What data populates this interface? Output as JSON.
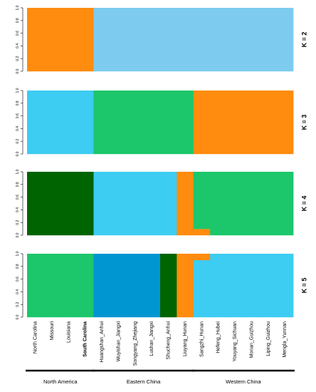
{
  "chart_data": {
    "type": "bar",
    "stacked": true,
    "categories": [
      "North Carolina",
      "Missouri",
      "Louisiana",
      "South Carolina",
      "Huangshan_Anhui",
      "Wuyishan_Jiangxi",
      "Songyang_Zhejiang",
      "Lushan_Jiangxi",
      "Shucheng_Anhui",
      "Liuyang_Hunan",
      "Sangzhi_Hunan",
      "Hefeng_Hubei",
      "Youyang_Sichuan",
      "Monan_Guizhou",
      "Liping_Guizhou",
      "Mengla_Yunnan"
    ],
    "bold_category": "South Carolina",
    "groups": [
      {
        "label": "North America",
        "start": 0,
        "end": 3
      },
      {
        "label": "Eastern China",
        "start": 4,
        "end": 9
      },
      {
        "label": "Western China",
        "start": 10,
        "end": 15
      }
    ],
    "ylim": [
      0,
      1
    ],
    "yticks": [
      "0.0",
      "0.2",
      "0.4",
      "0.6",
      "0.8",
      "1.0"
    ],
    "panels": [
      {
        "label": "K = 2",
        "segments": [
          {
            "from": 0,
            "to": 4,
            "layers": [
              {
                "color": "#FF8C0F",
                "value": 1
              }
            ]
          },
          {
            "from": 4,
            "to": 16,
            "layers": [
              {
                "color": "#7DCCF0",
                "value": 1
              }
            ]
          }
        ]
      },
      {
        "label": "K = 3",
        "segments": [
          {
            "from": 0,
            "to": 4,
            "layers": [
              {
                "color": "#3DCCF2",
                "value": 1
              }
            ]
          },
          {
            "from": 4,
            "to": 10,
            "layers": [
              {
                "color": "#1CC66B",
                "value": 1
              }
            ]
          },
          {
            "from": 10,
            "to": 16,
            "layers": [
              {
                "color": "#FF8C0F",
                "value": 1
              }
            ]
          }
        ]
      },
      {
        "label": "K = 4",
        "segments": [
          {
            "from": 0,
            "to": 4,
            "layers": [
              {
                "color": "#006400",
                "value": 1
              }
            ]
          },
          {
            "from": 4,
            "to": 9,
            "layers": [
              {
                "color": "#3DCCF2",
                "value": 1
              }
            ]
          },
          {
            "from": 9,
            "to": 10,
            "layers": [
              {
                "color": "#FF8C0F",
                "value": 1
              }
            ]
          },
          {
            "from": 10,
            "to": 11,
            "layers": [
              {
                "color": "#FF8C0F",
                "value": 0.1
              },
              {
                "color": "#1CC66B",
                "value": 0.9
              }
            ]
          },
          {
            "from": 11,
            "to": 16,
            "layers": [
              {
                "color": "#1CC66B",
                "value": 1
              }
            ]
          }
        ]
      },
      {
        "label": "K = 5",
        "segments": [
          {
            "from": 0,
            "to": 4,
            "layers": [
              {
                "color": "#1CC66B",
                "value": 1
              }
            ]
          },
          {
            "from": 4,
            "to": 8,
            "layers": [
              {
                "color": "#0096D2",
                "value": 1
              }
            ]
          },
          {
            "from": 8,
            "to": 9,
            "layers": [
              {
                "color": "#006400",
                "value": 1
              }
            ]
          },
          {
            "from": 9,
            "to": 10,
            "layers": [
              {
                "color": "#FF8C0F",
                "value": 1
              }
            ]
          },
          {
            "from": 10,
            "to": 11,
            "layers": [
              {
                "color": "#3DCCF2",
                "value": 0.9
              },
              {
                "color": "#FF8C0F",
                "value": 0.1
              }
            ]
          },
          {
            "from": 11,
            "to": 16,
            "layers": [
              {
                "color": "#3DCCF2",
                "value": 1
              }
            ]
          }
        ]
      }
    ]
  }
}
